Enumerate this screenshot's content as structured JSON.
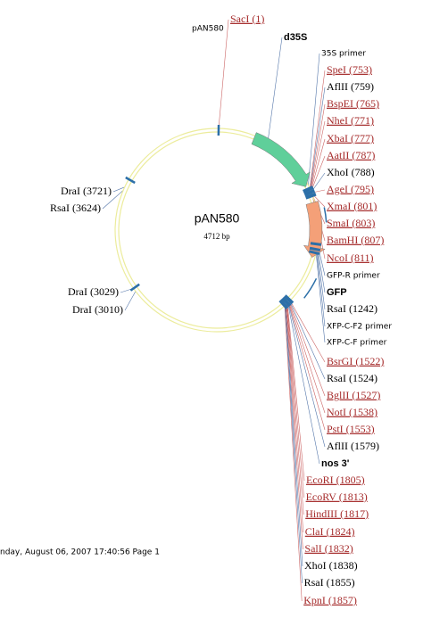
{
  "map_label": "pAN580",
  "plasmid": {
    "name": "pAN580",
    "size": "4712 bp"
  },
  "footer": "nday, August 06, 2007 17:40:56 Page 1",
  "top_labels": [
    {
      "text": "SacI (1)",
      "color": "#a52a2a"
    },
    {
      "text": "d35S",
      "color": "#000000"
    },
    {
      "text": "35S primer",
      "color": "#000000"
    }
  ],
  "right_labels": [
    {
      "text": "SpeI (753)",
      "color": "#a52a2a"
    },
    {
      "text": "AflII (759)",
      "color": "#000000"
    },
    {
      "text": "BspEI (765)",
      "color": "#a52a2a"
    },
    {
      "text": "NheI (771)",
      "color": "#a52a2a"
    },
    {
      "text": "XbaI (777)",
      "color": "#a52a2a"
    },
    {
      "text": "AatII (787)",
      "color": "#a52a2a"
    },
    {
      "text": "XhoI (788)",
      "color": "#000000"
    },
    {
      "text": "AgeI (795)",
      "color": "#a52a2a"
    },
    {
      "text": "XmaI (801)",
      "color": "#a52a2a"
    },
    {
      "text": "SmaI (803)",
      "color": "#a52a2a"
    },
    {
      "text": "BamHI (807)",
      "color": "#a52a2a"
    },
    {
      "text": "NcoI (811)",
      "color": "#a52a2a"
    },
    {
      "text": "GFP-R primer",
      "color": "#000000"
    },
    {
      "text": "GFP",
      "color": "#000000"
    },
    {
      "text": "RsaI (1242)",
      "color": "#000000"
    },
    {
      "text": "XFP-C-F2 primer",
      "color": "#000000"
    },
    {
      "text": "XFP-C-F primer",
      "color": "#000000"
    },
    {
      "text": "BsrGI (1522)",
      "color": "#a52a2a"
    },
    {
      "text": "RsaI (1524)",
      "color": "#000000"
    },
    {
      "text": "BglII (1527)",
      "color": "#a52a2a"
    },
    {
      "text": "NotI (1538)",
      "color": "#a52a2a"
    },
    {
      "text": "PstI (1553)",
      "color": "#a52a2a"
    },
    {
      "text": "AflII (1579)",
      "color": "#000000"
    },
    {
      "text": "nos 3'",
      "color": "#000000"
    },
    {
      "text": "EcoRI (1805)",
      "color": "#a52a2a"
    },
    {
      "text": "EcoRV (1813)",
      "color": "#a52a2a"
    },
    {
      "text": "HindIII (1817)",
      "color": "#a52a2a"
    },
    {
      "text": "ClaI (1824)",
      "color": "#a52a2a"
    },
    {
      "text": "SalI (1832)",
      "color": "#a52a2a"
    },
    {
      "text": "XhoI (1838)",
      "color": "#000000"
    },
    {
      "text": "RsaI (1855)",
      "color": "#000000"
    },
    {
      "text": "KpnI (1857)",
      "color": "#a52a2a"
    }
  ],
  "left_labels": [
    {
      "text": "DraI (3721)",
      "color": "#000000"
    },
    {
      "text": "RsaI (3624)",
      "color": "#000000"
    },
    {
      "text": "DraI (3029)",
      "color": "#000000"
    },
    {
      "text": "DraI (3010)",
      "color": "#000000"
    }
  ]
}
